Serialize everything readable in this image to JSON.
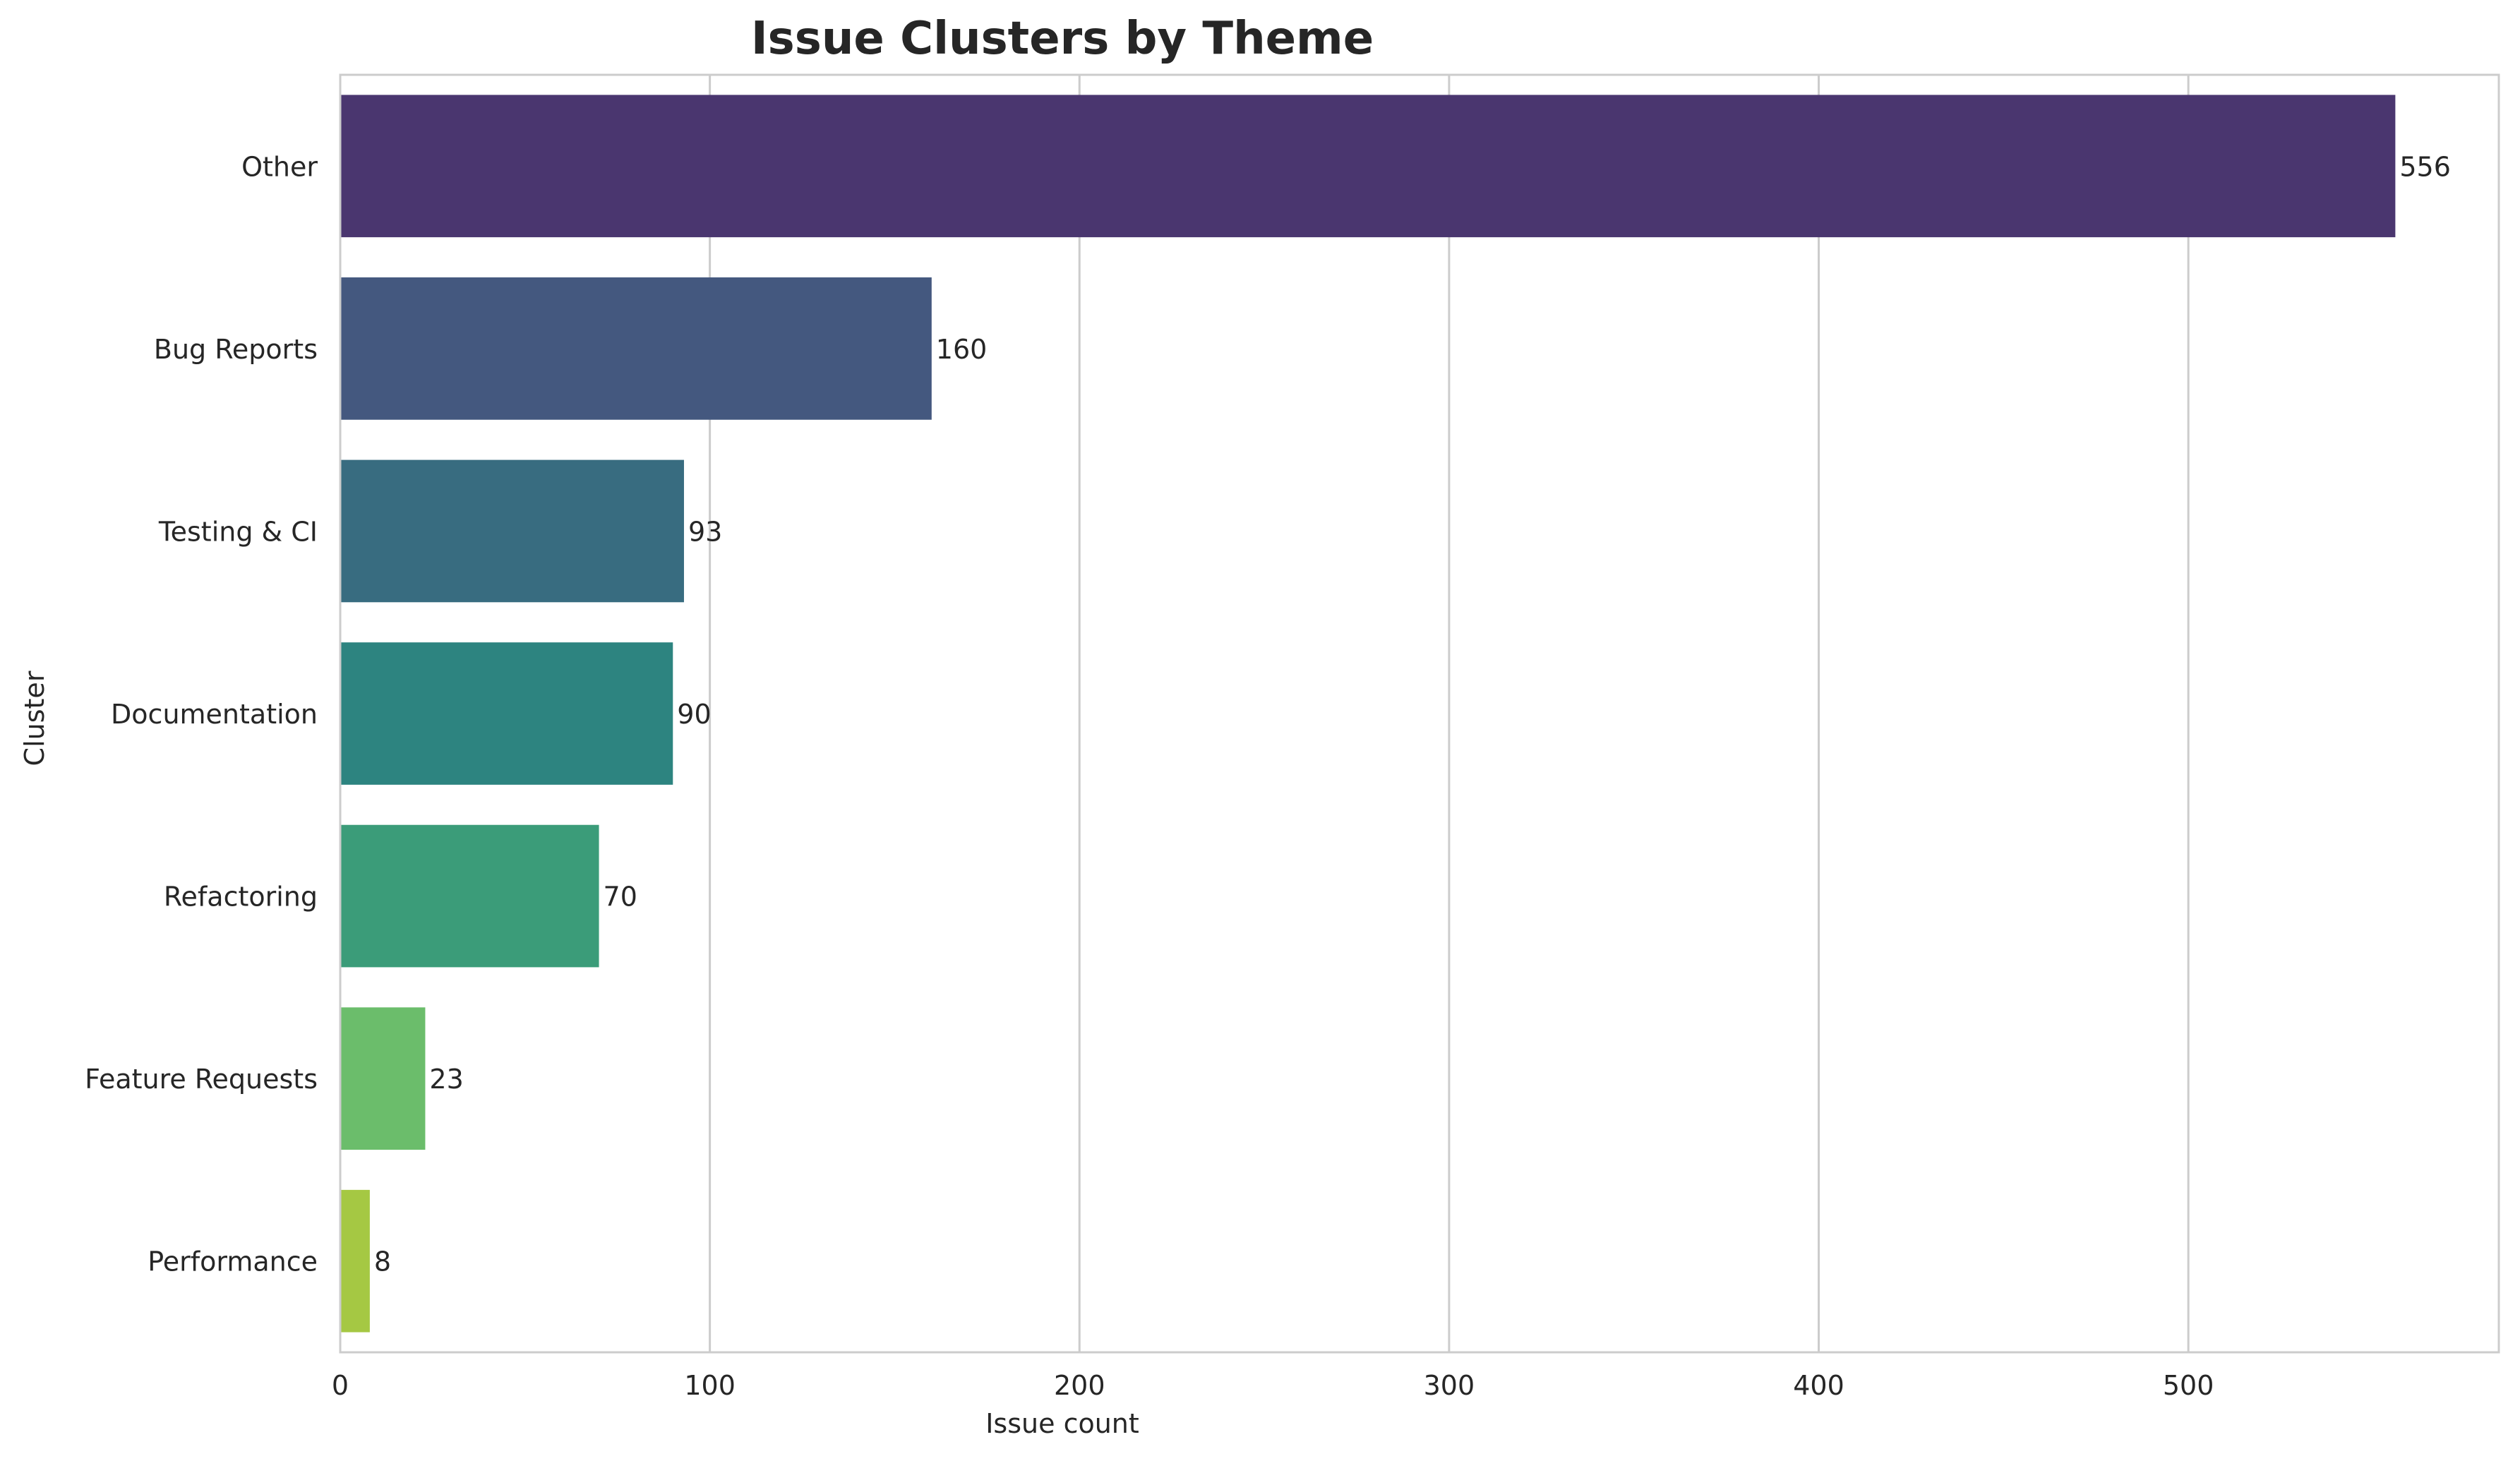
{
  "chart_data": {
    "type": "bar",
    "orientation": "horizontal",
    "title": "Issue Clusters by Theme",
    "xlabel": "Issue count",
    "ylabel": "Cluster",
    "categories": [
      "Other",
      "Bug Reports",
      "Testing & CI",
      "Documentation",
      "Refactoring",
      "Feature Requests",
      "Performance"
    ],
    "values": [
      556,
      160,
      93,
      90,
      70,
      23,
      8
    ],
    "colors": [
      "#4a366f",
      "#44587f",
      "#386c80",
      "#2d8480",
      "#3b9c79",
      "#6bbd6b",
      "#a5c843"
    ],
    "xticks": [
      0,
      100,
      200,
      300,
      400,
      500
    ],
    "xlim": [
      0,
      584
    ],
    "grid": "vertical",
    "legend": "none"
  }
}
